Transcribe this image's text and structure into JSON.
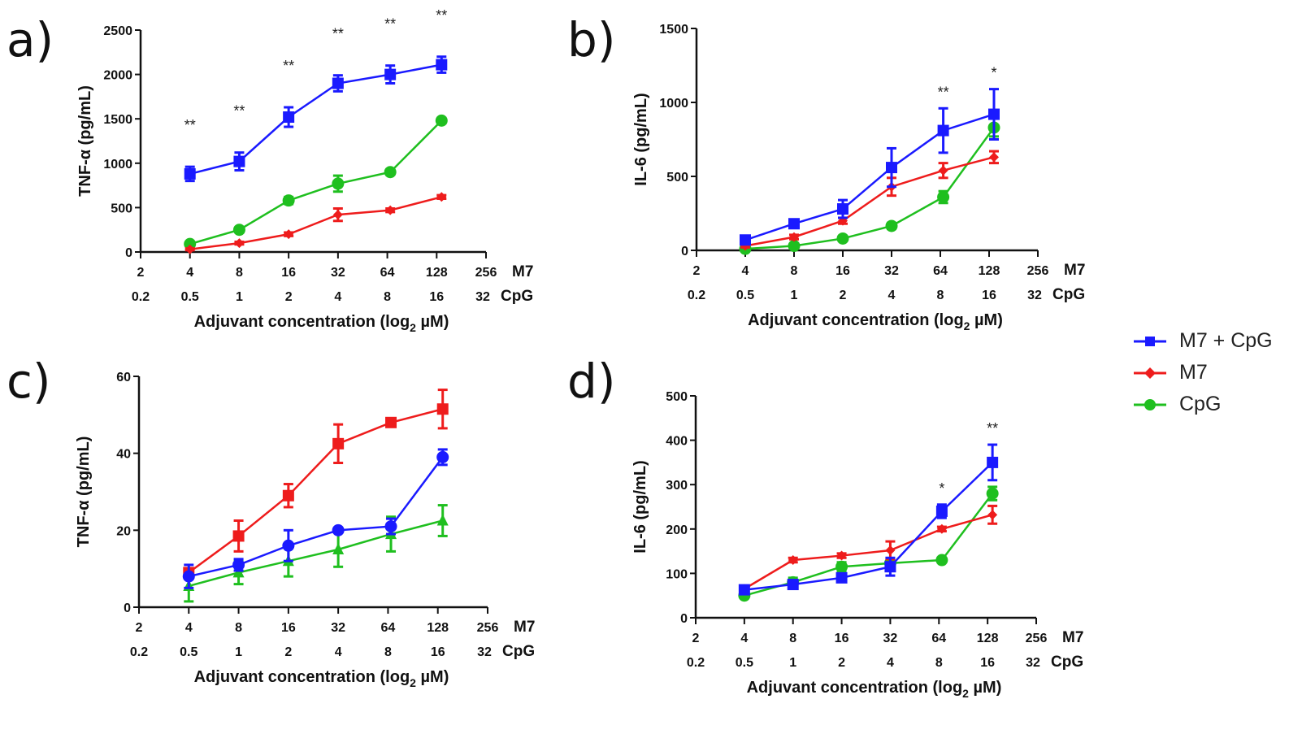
{
  "figure": {
    "panel_letters": [
      "a)",
      "b)",
      "c)",
      "d)"
    ]
  },
  "legend": {
    "items": [
      {
        "label": "M7 + CpG",
        "color": "#1a1aff",
        "marker": "square"
      },
      {
        "label": "M7",
        "color": "#ee1c1c",
        "marker": "diamond"
      },
      {
        "label": "CpG",
        "color": "#1fbf1f",
        "marker": "circle"
      }
    ]
  },
  "chart_data": [
    {
      "panel": "a",
      "type": "line",
      "title": "",
      "ylabel": "TNF-α (pg/mL)",
      "xlabel": "Adjuvant concentration (log2 µM)",
      "xlabel_parts": {
        "pre": "Adjuvant concentration (log",
        "sub": "2",
        "post": " µM)"
      },
      "ylim": [
        0,
        2500
      ],
      "yticks": [
        0,
        500,
        1000,
        1500,
        2000,
        2500
      ],
      "x_positions_log2_m7": [
        1,
        2,
        3,
        4,
        5,
        6,
        7,
        8
      ],
      "xtick_labels_m7": [
        "2",
        "4",
        "8",
        "16",
        "32",
        "64",
        "128",
        "256"
      ],
      "xtick_labels_cpg": [
        "0.2",
        "0.5",
        "1",
        "2",
        "4",
        "8",
        "16",
        "32"
      ],
      "xrow_labels": [
        "M7",
        "CpG"
      ],
      "x_points_m7": [
        4,
        8,
        16,
        32,
        64,
        128
      ],
      "series": [
        {
          "name": "M7 + CpG",
          "color": "#1a1aff",
          "marker": "square",
          "values": [
            880,
            1020,
            1520,
            1900,
            2000,
            2110
          ],
          "errors": [
            80,
            100,
            110,
            90,
            100,
            90
          ]
        },
        {
          "name": "M7",
          "color": "#ee1c1c",
          "marker": "diamond",
          "values": [
            30,
            100,
            200,
            420,
            470,
            620
          ],
          "errors": [
            10,
            15,
            20,
            70,
            20,
            20
          ]
        },
        {
          "name": "CpG",
          "color": "#1fbf1f",
          "marker": "circle",
          "values": [
            90,
            250,
            580,
            770,
            900,
            1480
          ],
          "errors": [
            20,
            30,
            40,
            90,
            30,
            30
          ]
        }
      ],
      "annotations": [
        "**",
        "**",
        "**",
        "**",
        "**",
        "**"
      ]
    },
    {
      "panel": "b",
      "type": "line",
      "title": "",
      "ylabel": "IL-6 (pg/mL)",
      "xlabel": "Adjuvant concentration (log2 µM)",
      "xlabel_parts": {
        "pre": "Adjuvant concentration (log",
        "sub": "2",
        "post": " µM)"
      },
      "ylim": [
        0,
        1500
      ],
      "yticks": [
        0,
        500,
        1000,
        1500
      ],
      "x_positions_log2_m7": [
        1,
        2,
        3,
        4,
        5,
        6,
        7,
        8
      ],
      "xtick_labels_m7": [
        "2",
        "4",
        "8",
        "16",
        "32",
        "64",
        "128",
        "256"
      ],
      "xtick_labels_cpg": [
        "0.2",
        "0.5",
        "1",
        "2",
        "4",
        "8",
        "16",
        "32"
      ],
      "xrow_labels": [
        "M7",
        "CpG"
      ],
      "x_points_m7": [
        4,
        8,
        16,
        32,
        64,
        128
      ],
      "series": [
        {
          "name": "M7 + CpG",
          "color": "#1a1aff",
          "marker": "square",
          "values": [
            70,
            180,
            280,
            560,
            810,
            920
          ],
          "errors": [
            15,
            15,
            60,
            130,
            150,
            170
          ]
        },
        {
          "name": "M7",
          "color": "#ee1c1c",
          "marker": "diamond",
          "values": [
            30,
            90,
            200,
            430,
            540,
            630
          ],
          "errors": [
            10,
            15,
            20,
            60,
            50,
            40
          ]
        },
        {
          "name": "CpG",
          "color": "#1fbf1f",
          "marker": "circle",
          "values": [
            10,
            30,
            80,
            165,
            360,
            830
          ],
          "errors": [
            5,
            10,
            15,
            20,
            40,
            60
          ]
        }
      ],
      "annotations": [
        "",
        "",
        "",
        "",
        "**",
        "*"
      ]
    },
    {
      "panel": "c",
      "type": "line",
      "title": "",
      "ylabel": "TNF-α (pg/mL)",
      "xlabel": "Adjuvant concentration (log2 µM)",
      "xlabel_parts": {
        "pre": "Adjuvant concentration (log",
        "sub": "2",
        "post": " µM)"
      },
      "ylim": [
        0,
        60
      ],
      "yticks": [
        0,
        20,
        40,
        60
      ],
      "x_positions_log2_m7": [
        1,
        2,
        3,
        4,
        5,
        6,
        7,
        8
      ],
      "xtick_labels_m7": [
        "2",
        "4",
        "8",
        "16",
        "32",
        "64",
        "128",
        "256"
      ],
      "xtick_labels_cpg": [
        "0.2",
        "0.5",
        "1",
        "2",
        "4",
        "8",
        "16",
        "32"
      ],
      "xrow_labels": [
        "M7",
        "CpG"
      ],
      "x_points_m7": [
        4,
        8,
        16,
        32,
        64,
        128
      ],
      "series": [
        {
          "name": "M7 + CpG",
          "color": "#1a1aff",
          "marker": "circle",
          "values": [
            8,
            11,
            16,
            20,
            21,
            39
          ],
          "errors": [
            3,
            1.5,
            4,
            0.5,
            2,
            2
          ]
        },
        {
          "name": "M7",
          "color": "#ee1c1c",
          "marker": "square",
          "values": [
            9,
            18.5,
            29,
            42.5,
            48,
            51.5
          ],
          "errors": [
            1,
            4,
            3,
            5,
            0.5,
            5
          ]
        },
        {
          "name": "CpG",
          "color": "#1fbf1f",
          "marker": "triangle",
          "values": [
            5.5,
            9,
            12,
            15,
            19,
            22.5
          ],
          "errors": [
            4,
            3,
            4,
            4.5,
            4.5,
            4
          ]
        }
      ],
      "annotations": [
        "",
        "",
        "",
        "",
        "",
        ""
      ]
    },
    {
      "panel": "d",
      "type": "line",
      "title": "",
      "ylabel": "IL-6 (pg/mL)",
      "xlabel": "Adjuvant concentration (log2 µM)",
      "xlabel_parts": {
        "pre": "Adjuvant concentration (log",
        "sub": "2",
        "post": " µM)"
      },
      "ylim": [
        0,
        500
      ],
      "yticks": [
        0,
        100,
        200,
        300,
        400,
        500
      ],
      "x_positions_log2_m7": [
        1,
        2,
        3,
        4,
        5,
        6,
        7,
        8
      ],
      "xtick_labels_m7": [
        "2",
        "4",
        "8",
        "16",
        "32",
        "64",
        "128",
        "256"
      ],
      "xtick_labels_cpg": [
        "0.2",
        "0.5",
        "1",
        "2",
        "4",
        "8",
        "16",
        "32"
      ],
      "xrow_labels": [
        "M7",
        "CpG"
      ],
      "x_points_m7": [
        4,
        8,
        16,
        32,
        64,
        128
      ],
      "series": [
        {
          "name": "M7 + CpG",
          "color": "#1a1aff",
          "marker": "square",
          "values": [
            63,
            75,
            90,
            115,
            240,
            350
          ],
          "errors": [
            5,
            5,
            5,
            20,
            15,
            40
          ]
        },
        {
          "name": "M7",
          "color": "#ee1c1c",
          "marker": "diamond",
          "values": [
            65,
            130,
            140,
            152,
            200,
            232
          ],
          "errors": [
            5,
            5,
            5,
            20,
            5,
            20
          ]
        },
        {
          "name": "CpG",
          "color": "#1fbf1f",
          "marker": "circle",
          "values": [
            50,
            80,
            115,
            123,
            130,
            280
          ],
          "errors": [
            5,
            10,
            10,
            5,
            5,
            15
          ]
        }
      ],
      "annotations": [
        "",
        "",
        "",
        "",
        "*",
        "**"
      ]
    }
  ]
}
